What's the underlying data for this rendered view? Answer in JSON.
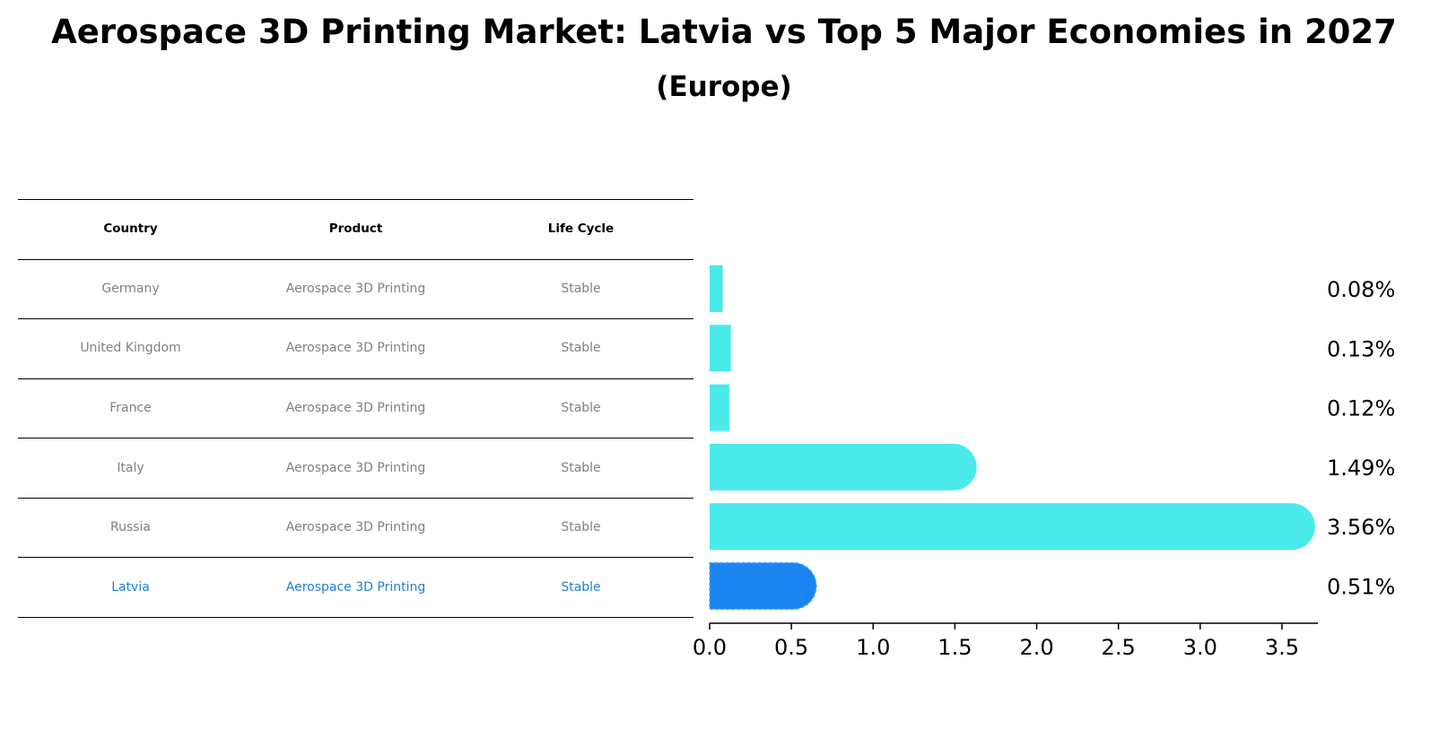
{
  "title": "Aerospace 3D Printing Market: Latvia vs Top 5 Major Economies in 2027",
  "subtitle": "(Europe)",
  "table": {
    "headers": [
      "Country",
      "Product",
      "Life Cycle"
    ],
    "rows": [
      {
        "country": "Germany",
        "product": "Aerospace 3D Printing",
        "life_cycle": "Stable"
      },
      {
        "country": "United Kingdom",
        "product": "Aerospace 3D Printing",
        "life_cycle": "Stable"
      },
      {
        "country": "France",
        "product": "Aerospace 3D Printing",
        "life_cycle": "Stable"
      },
      {
        "country": "Italy",
        "product": "Aerospace 3D Printing",
        "life_cycle": "Stable"
      },
      {
        "country": "Russia",
        "product": "Aerospace 3D Printing",
        "life_cycle": "Stable"
      },
      {
        "country": "Latvia",
        "product": "Aerospace 3D Printing",
        "life_cycle": "Stable"
      }
    ]
  },
  "chart_data": {
    "type": "bar",
    "orientation": "horizontal",
    "categories": [
      "Germany",
      "United Kingdom",
      "France",
      "Italy",
      "Russia",
      "Latvia"
    ],
    "values": [
      0.08,
      0.13,
      0.12,
      1.49,
      3.56,
      0.51
    ],
    "value_labels": [
      "0.08%",
      "0.13%",
      "0.12%",
      "1.49%",
      "3.56%",
      "0.51%"
    ],
    "highlight": "Latvia",
    "xlim": [
      0,
      3.72
    ],
    "xticks": [
      0.0,
      0.5,
      1.0,
      1.5,
      2.0,
      2.5,
      3.0,
      3.5
    ],
    "xtick_labels": [
      "0.0",
      "0.5",
      "1.0",
      "1.5",
      "2.0",
      "2.5",
      "3.0",
      "3.5"
    ],
    "grid": false,
    "colors": {
      "default": "#4aeaea",
      "highlight": "#1a85f0"
    }
  },
  "colors": {
    "muted_text": "#808080",
    "highlight_text": "#1f7fd6"
  }
}
